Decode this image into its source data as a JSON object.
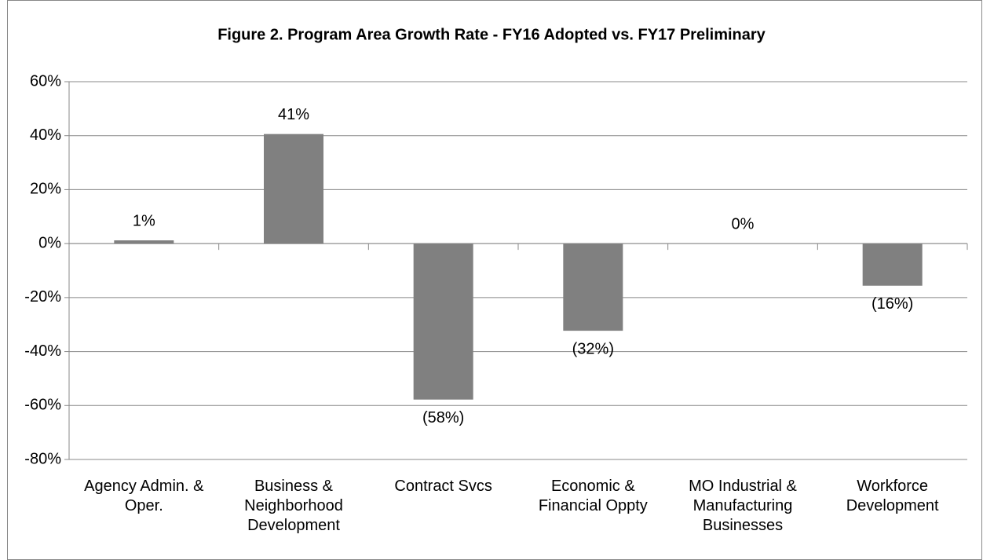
{
  "chart_data": {
    "type": "bar",
    "title": "Figure 2. Program Area Growth Rate - FY16 Adopted vs. FY17 Preliminary",
    "categories": [
      "Agency Admin. & Oper.",
      "Business & Neighborhood Development",
      "Contract Svcs",
      "Economic & Financial Oppty",
      "MO Industrial & Manufacturing Businesses",
      "Workforce Development"
    ],
    "values": [
      1.2,
      40.6,
      -57.8,
      -32.3,
      0,
      -15.6
    ],
    "value_labels": [
      "1%",
      "41%",
      "(58%)",
      "(32%)",
      "0%",
      "(16%)"
    ],
    "color": "#808080",
    "ylim": [
      -80,
      60
    ],
    "yticks": [
      {
        "value": -80,
        "label": "-80%"
      },
      {
        "value": -60,
        "label": "-60%"
      },
      {
        "value": -40,
        "label": "-40%"
      },
      {
        "value": -20,
        "label": "-20%"
      },
      {
        "value": 0,
        "label": "0%"
      },
      {
        "value": 20,
        "label": "20%"
      },
      {
        "value": 40,
        "label": "40%"
      },
      {
        "value": 60,
        "label": "60%"
      }
    ],
    "grid": true
  }
}
